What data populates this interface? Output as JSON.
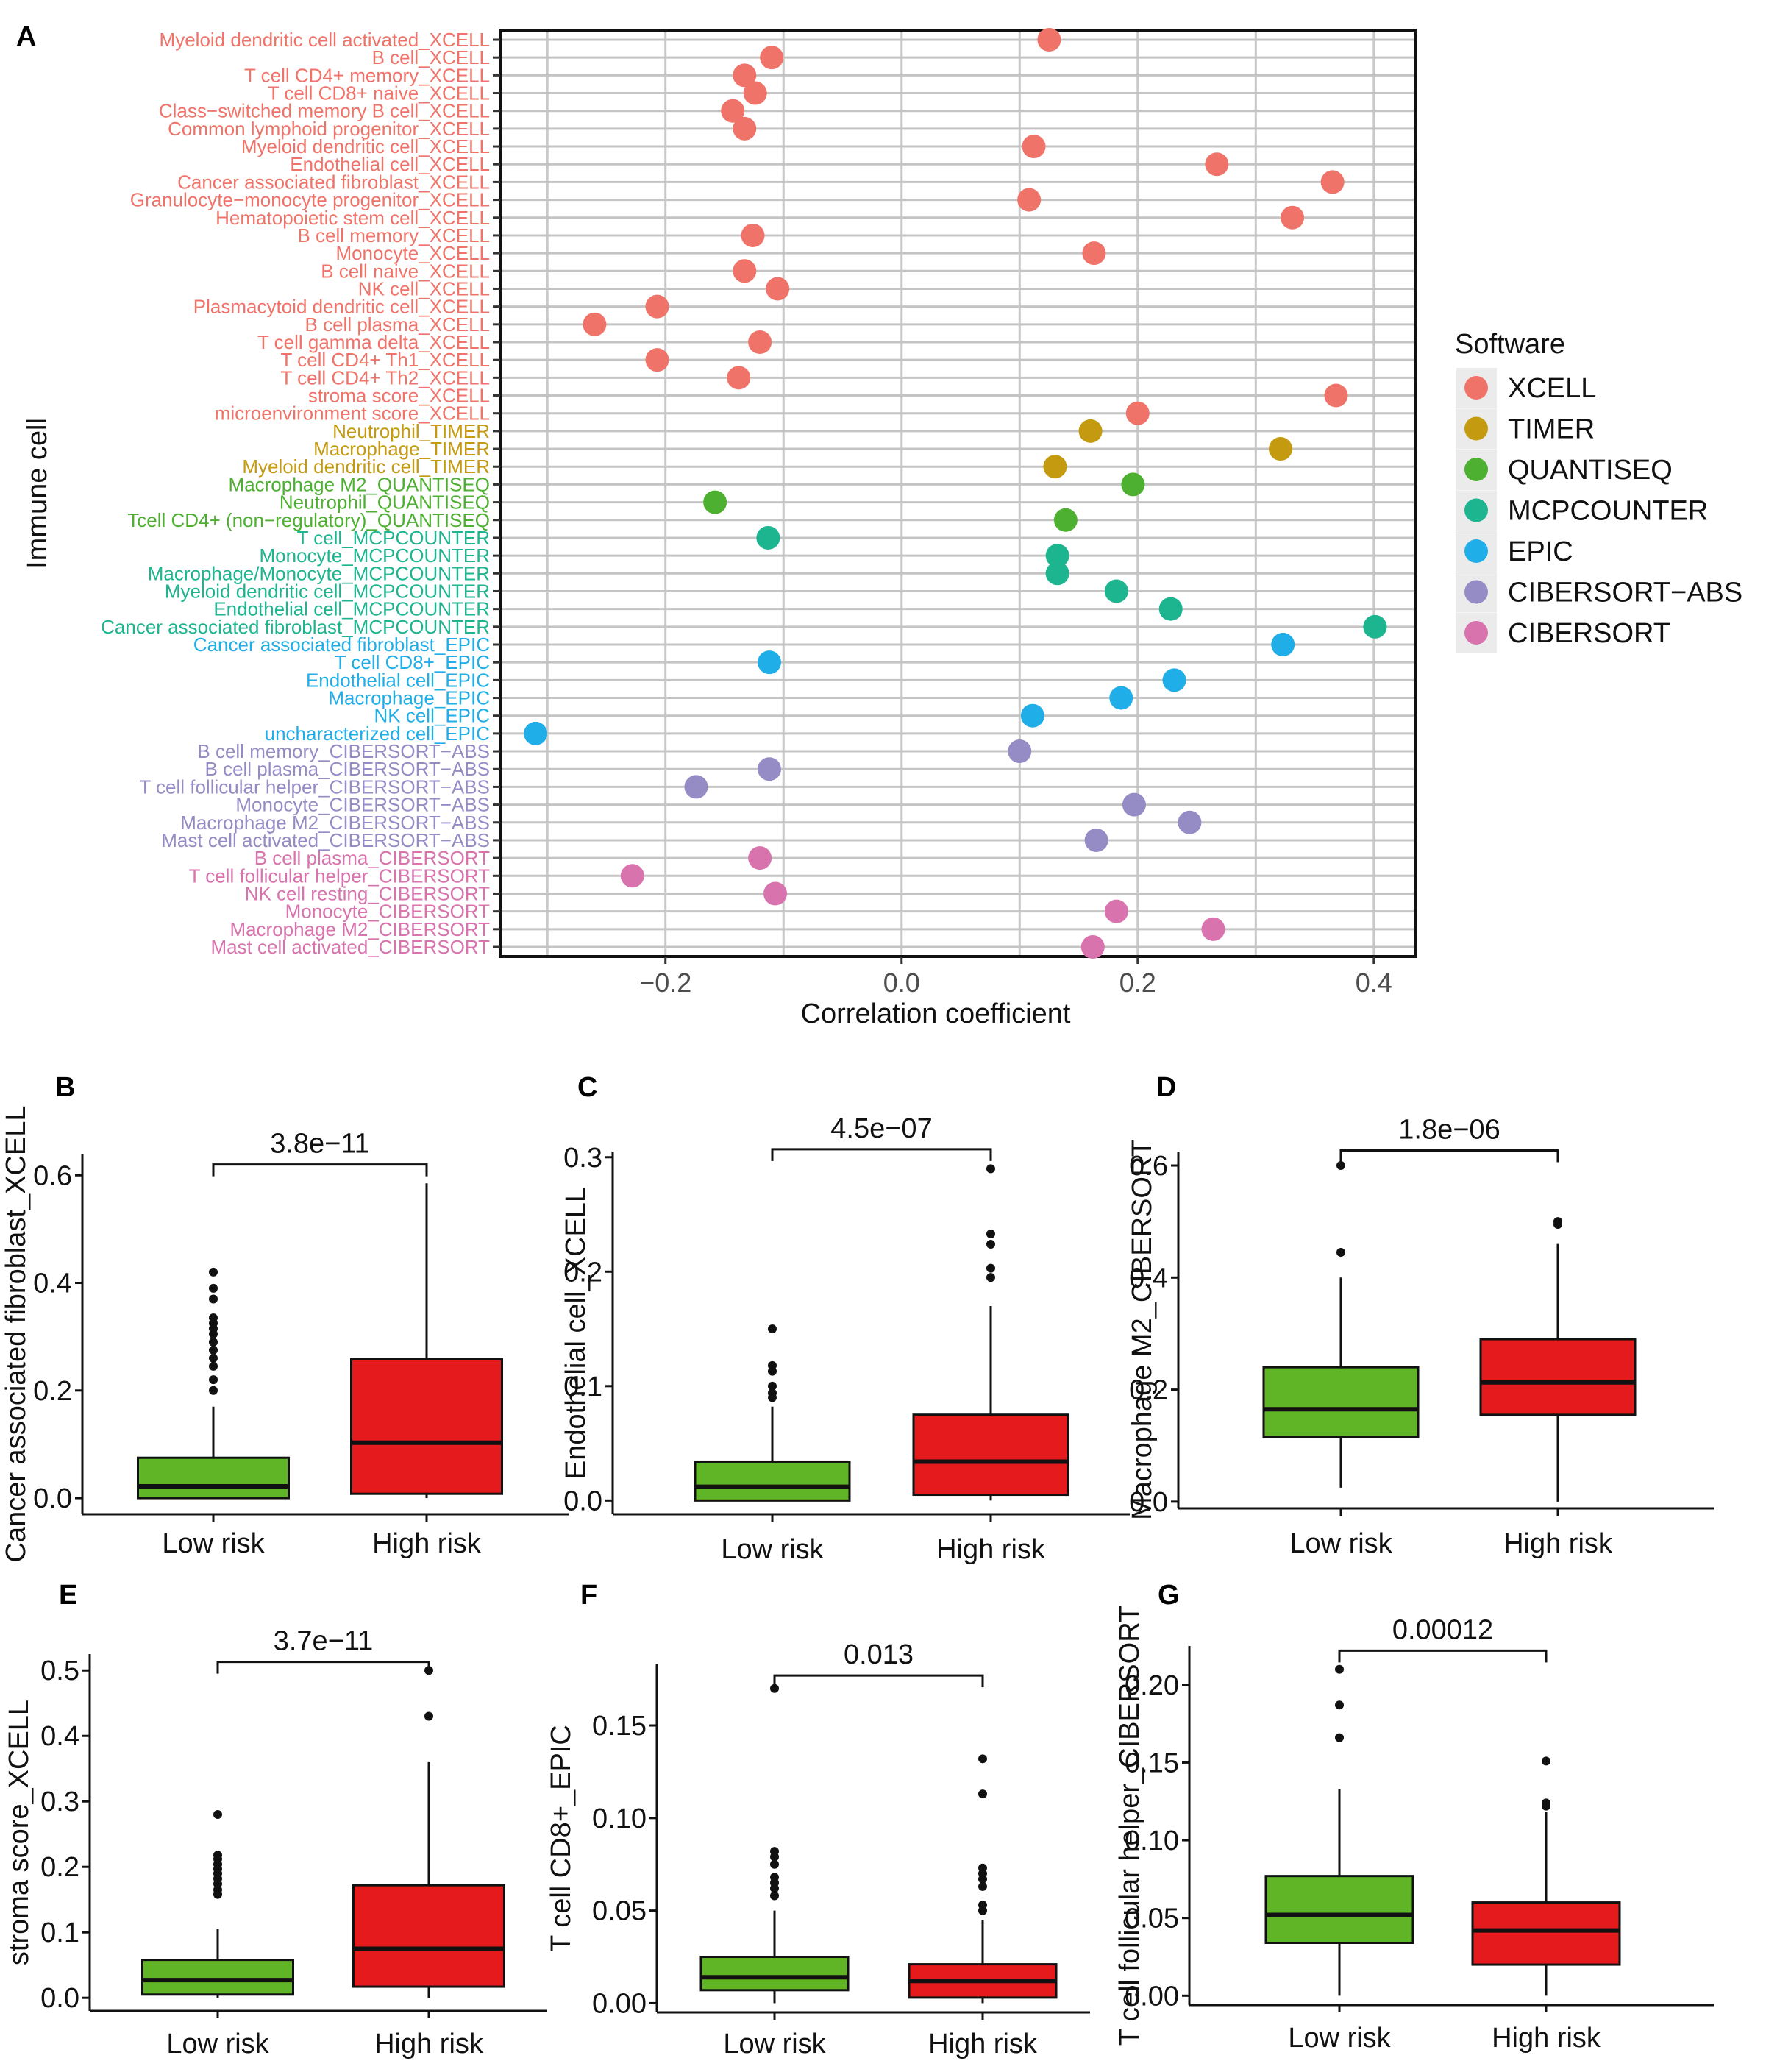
{
  "figure": {
    "panel_a_letter": "A",
    "software_colors": {
      "XCELL": "#F07369",
      "TIMER": "#C49A10",
      "QUANTISEQ": "#4DB030",
      "MCPCOUNTER": "#1DB58F",
      "EPIC": "#1FAEE8",
      "CIBERSORT-ABS": "#958CC6",
      "CIBERSORT": "#D873AE"
    },
    "box_colors": {
      "low": "#5FB526",
      "high": "#E41A1C"
    }
  },
  "chart_data": [
    {
      "panel": "A",
      "type": "scatter",
      "xlabel": "Correlation coefficient",
      "ylabel": "Immune cell",
      "xlim": [
        -0.34,
        0.435
      ],
      "xticks": [
        -0.2,
        0.0,
        0.2,
        0.4
      ],
      "xtick_labels": [
        "−0.2",
        "0.0",
        "0.2",
        "0.4"
      ],
      "grid": true,
      "legend": {
        "title": "Software",
        "position": "right",
        "entries": [
          "XCELL",
          "TIMER",
          "QUANTISEQ",
          "MCPCOUNTER",
          "EPIC",
          "CIBERSORT−ABS",
          "CIBERSORT"
        ]
      },
      "points": [
        {
          "label": "Myeloid dendritic cell activated_XCELL",
          "software": "XCELL",
          "value": 0.125
        },
        {
          "label": "B cell_XCELL",
          "software": "XCELL",
          "value": -0.11
        },
        {
          "label": "T cell CD4+ memory_XCELL",
          "software": "XCELL",
          "value": -0.133
        },
        {
          "label": "T cell CD8+ naive_XCELL",
          "software": "XCELL",
          "value": -0.124
        },
        {
          "label": "Class−switched memory B cell_XCELL",
          "software": "XCELL",
          "value": -0.143
        },
        {
          "label": "Common lymphoid progenitor_XCELL",
          "software": "XCELL",
          "value": -0.133
        },
        {
          "label": "Myeloid dendritic cell_XCELL",
          "software": "XCELL",
          "value": 0.112
        },
        {
          "label": "Endothelial cell_XCELL",
          "software": "XCELL",
          "value": 0.267
        },
        {
          "label": "Cancer associated fibroblast_XCELL",
          "software": "XCELL",
          "value": 0.365
        },
        {
          "label": "Granulocyte−monocyte progenitor_XCELL",
          "software": "XCELL",
          "value": 0.108
        },
        {
          "label": "Hematopoietic stem cell_XCELL",
          "software": "XCELL",
          "value": 0.331
        },
        {
          "label": "B cell memory_XCELL",
          "software": "XCELL",
          "value": -0.126
        },
        {
          "label": "Monocyte_XCELL",
          "software": "XCELL",
          "value": 0.163
        },
        {
          "label": "B cell naive_XCELL",
          "software": "XCELL",
          "value": -0.133
        },
        {
          "label": "NK cell_XCELL",
          "software": "XCELL",
          "value": -0.105
        },
        {
          "label": "Plasmacytoid dendritic cell_XCELL",
          "software": "XCELL",
          "value": -0.207
        },
        {
          "label": "B cell plasma_XCELL",
          "software": "XCELL",
          "value": -0.26
        },
        {
          "label": "T cell gamma delta_XCELL",
          "software": "XCELL",
          "value": -0.12
        },
        {
          "label": "T cell CD4+ Th1_XCELL",
          "software": "XCELL",
          "value": -0.207
        },
        {
          "label": "T cell CD4+ Th2_XCELL",
          "software": "XCELL",
          "value": -0.138
        },
        {
          "label": "stroma score_XCELL",
          "software": "XCELL",
          "value": 0.368
        },
        {
          "label": "microenvironment score_XCELL",
          "software": "XCELL",
          "value": 0.2
        },
        {
          "label": "Neutrophil_TIMER",
          "software": "TIMER",
          "value": 0.16
        },
        {
          "label": "Macrophage_TIMER",
          "software": "TIMER",
          "value": 0.321
        },
        {
          "label": "Myeloid dendritic cell_TIMER",
          "software": "TIMER",
          "value": 0.13
        },
        {
          "label": "Macrophage M2_QUANTISEQ",
          "software": "QUANTISEQ",
          "value": 0.196
        },
        {
          "label": "Neutrophil_QUANTISEQ",
          "software": "QUANTISEQ",
          "value": -0.158
        },
        {
          "label": "Tcell CD4+ (non−regulatory)_QUANTISEQ",
          "software": "QUANTISEQ",
          "value": 0.139
        },
        {
          "label": "T cell_MCPCOUNTER",
          "software": "MCPCOUNTER",
          "value": -0.113
        },
        {
          "label": "Monocyte_MCPCOUNTER",
          "software": "MCPCOUNTER",
          "value": 0.132
        },
        {
          "label": "Macrophage/Monocyte_MCPCOUNTER",
          "software": "MCPCOUNTER",
          "value": 0.132
        },
        {
          "label": "Myeloid dendritic cell_MCPCOUNTER",
          "software": "MCPCOUNTER",
          "value": 0.182
        },
        {
          "label": "Endothelial cell_MCPCOUNTER",
          "software": "MCPCOUNTER",
          "value": 0.228
        },
        {
          "label": "Cancer associated fibroblast_MCPCOUNTER",
          "software": "MCPCOUNTER",
          "value": 0.401
        },
        {
          "label": "Cancer associated fibroblast_EPIC",
          "software": "EPIC",
          "value": 0.323
        },
        {
          "label": "T cell CD8+_EPIC",
          "software": "EPIC",
          "value": -0.112
        },
        {
          "label": "Endothelial cell_EPIC",
          "software": "EPIC",
          "value": 0.231
        },
        {
          "label": "Macrophage_EPIC",
          "software": "EPIC",
          "value": 0.186
        },
        {
          "label": "NK cell_EPIC",
          "software": "EPIC",
          "value": 0.111
        },
        {
          "label": "uncharacterized cell_EPIC",
          "software": "EPIC",
          "value": -0.31
        },
        {
          "label": "B cell memory_CIBERSORT−ABS",
          "software": "CIBERSORT-ABS",
          "value": 0.1
        },
        {
          "label": "B cell plasma_CIBERSORT−ABS",
          "software": "CIBERSORT-ABS",
          "value": -0.112
        },
        {
          "label": "T cell follicular helper_CIBERSORT−ABS",
          "software": "CIBERSORT-ABS",
          "value": -0.174
        },
        {
          "label": "Monocyte_CIBERSORT−ABS",
          "software": "CIBERSORT-ABS",
          "value": 0.197
        },
        {
          "label": "Macrophage M2_CIBERSORT−ABS",
          "software": "CIBERSORT-ABS",
          "value": 0.244
        },
        {
          "label": "Mast cell activated_CIBERSORT−ABS",
          "software": "CIBERSORT-ABS",
          "value": 0.165
        },
        {
          "label": "B cell plasma_CIBERSORT",
          "software": "CIBERSORT",
          "value": -0.12
        },
        {
          "label": "T cell follicular helper_CIBERSORT",
          "software": "CIBERSORT",
          "value": -0.228
        },
        {
          "label": "NK cell resting_CIBERSORT",
          "software": "CIBERSORT",
          "value": -0.107
        },
        {
          "label": "Monocyte_CIBERSORT",
          "software": "CIBERSORT",
          "value": 0.182
        },
        {
          "label": "Macrophage M2_CIBERSORT",
          "software": "CIBERSORT",
          "value": 0.264
        },
        {
          "label": "Mast cell activated_CIBERSORT",
          "software": "CIBERSORT",
          "value": 0.162
        }
      ]
    },
    {
      "panel": "B",
      "type": "box",
      "ylabel": "Cancer associated fibroblast_XCELL",
      "ylim": [
        -0.03,
        0.64
      ],
      "yticks": [
        0.0,
        0.2,
        0.4,
        0.6
      ],
      "ytick_labels": [
        "0.0",
        "0.2",
        "0.4",
        "0.6"
      ],
      "pvalue": "3.8e−11",
      "bracket_y": 0.62,
      "groups": [
        {
          "name": "Low risk",
          "whisker_low": 0.0,
          "q1": 0.0,
          "median": 0.022,
          "q3": 0.075,
          "whisker_high": 0.17,
          "outliers": [
            0.42,
            0.39,
            0.37,
            0.335,
            0.325,
            0.315,
            0.305,
            0.29,
            0.275,
            0.26,
            0.245,
            0.22,
            0.2
          ]
        },
        {
          "name": "High risk",
          "whisker_low": 0.0,
          "q1": 0.008,
          "median": 0.103,
          "q3": 0.258,
          "whisker_high": 0.585,
          "outliers": []
        }
      ]
    },
    {
      "panel": "C",
      "type": "box",
      "ylabel": "Endothelial cell_XCELL",
      "ylim": [
        -0.012,
        0.305
      ],
      "yticks": [
        0.0,
        0.1,
        0.2,
        0.3
      ],
      "ytick_labels": [
        "0.0",
        "0.1",
        "0.2",
        "0.3"
      ],
      "pvalue": "4.5e−07",
      "bracket_y": 0.307,
      "groups": [
        {
          "name": "Low risk",
          "whisker_low": 0.0,
          "q1": 0.0,
          "median": 0.012,
          "q3": 0.034,
          "whisker_high": 0.082,
          "outliers": [
            0.15,
            0.118,
            0.113,
            0.1,
            0.094,
            0.09
          ]
        },
        {
          "name": "High risk",
          "whisker_low": 0.0,
          "q1": 0.005,
          "median": 0.034,
          "q3": 0.075,
          "whisker_high": 0.17,
          "outliers": [
            0.29,
            0.233,
            0.224,
            0.203,
            0.195
          ]
        }
      ]
    },
    {
      "panel": "D",
      "type": "box",
      "ylabel": "Macrophage M2_CIBERSORT",
      "ylim": [
        -0.012,
        0.625
      ],
      "yticks": [
        0.0,
        0.2,
        0.4,
        0.6
      ],
      "ytick_labels": [
        "0.0",
        "0.2",
        "0.4",
        "0.6"
      ],
      "pvalue": "1.8e−06",
      "bracket_y": 0.627,
      "groups": [
        {
          "name": "Low risk",
          "whisker_low": 0.025,
          "q1": 0.115,
          "median": 0.165,
          "q3": 0.24,
          "whisker_high": 0.4,
          "outliers": [
            0.6,
            0.445
          ]
        },
        {
          "name": "High risk",
          "whisker_low": 0.0,
          "q1": 0.155,
          "median": 0.213,
          "q3": 0.29,
          "whisker_high": 0.46,
          "outliers": [
            0.5,
            0.495
          ]
        }
      ]
    },
    {
      "panel": "E",
      "type": "box",
      "ylabel": "stroma score_XCELL",
      "ylim": [
        -0.02,
        0.525
      ],
      "yticks": [
        0.0,
        0.1,
        0.2,
        0.3,
        0.4,
        0.5
      ],
      "ytick_labels": [
        "0.0",
        "0.1",
        "0.2",
        "0.3",
        "0.4",
        "0.5"
      ],
      "pvalue": "3.7e−11",
      "bracket_y": 0.513,
      "groups": [
        {
          "name": "Low risk",
          "whisker_low": 0.0,
          "q1": 0.005,
          "median": 0.027,
          "q3": 0.058,
          "whisker_high": 0.105,
          "outliers": [
            0.28,
            0.218,
            0.212,
            0.204,
            0.197,
            0.19,
            0.182,
            0.174,
            0.165,
            0.158
          ]
        },
        {
          "name": "High risk",
          "whisker_low": 0.0,
          "q1": 0.017,
          "median": 0.075,
          "q3": 0.172,
          "whisker_high": 0.36,
          "outliers": [
            0.5,
            0.43
          ]
        }
      ]
    },
    {
      "panel": "F",
      "type": "box",
      "ylabel": "T cell CD8+_EPIC",
      "ylim": [
        -0.005,
        0.183
      ],
      "yticks": [
        0.0,
        0.05,
        0.1,
        0.15
      ],
      "ytick_labels": [
        "0.00",
        "0.05",
        "0.10",
        "0.15"
      ],
      "pvalue": "0.013",
      "bracket_y": 0.177,
      "groups": [
        {
          "name": "Low risk",
          "whisker_low": 0.0,
          "q1": 0.007,
          "median": 0.014,
          "q3": 0.025,
          "whisker_high": 0.05,
          "outliers": [
            0.17,
            0.082,
            0.079,
            0.075,
            0.068,
            0.065,
            0.062,
            0.058
          ]
        },
        {
          "name": "High risk",
          "whisker_low": 0.0,
          "q1": 0.003,
          "median": 0.012,
          "q3": 0.021,
          "whisker_high": 0.045,
          "outliers": [
            0.132,
            0.113,
            0.073,
            0.07,
            0.067,
            0.063,
            0.053,
            0.05
          ]
        }
      ]
    },
    {
      "panel": "G",
      "type": "box",
      "ylabel": "T cell follicular helper_CIBERSORT",
      "ylim": [
        -0.006,
        0.225
      ],
      "yticks": [
        0.0,
        0.05,
        0.1,
        0.15,
        0.2
      ],
      "ytick_labels": [
        "0.00",
        "0.05",
        "0.10",
        "0.15",
        "0.20"
      ],
      "pvalue": "0.00012",
      "bracket_y": 0.222,
      "groups": [
        {
          "name": "Low risk",
          "whisker_low": 0.0,
          "q1": 0.034,
          "median": 0.052,
          "q3": 0.077,
          "whisker_high": 0.133,
          "outliers": [
            0.21,
            0.187,
            0.166
          ]
        },
        {
          "name": "High risk",
          "whisker_low": 0.0,
          "q1": 0.02,
          "median": 0.042,
          "q3": 0.06,
          "whisker_high": 0.118,
          "outliers": [
            0.151,
            0.124,
            0.122
          ]
        }
      ]
    }
  ]
}
